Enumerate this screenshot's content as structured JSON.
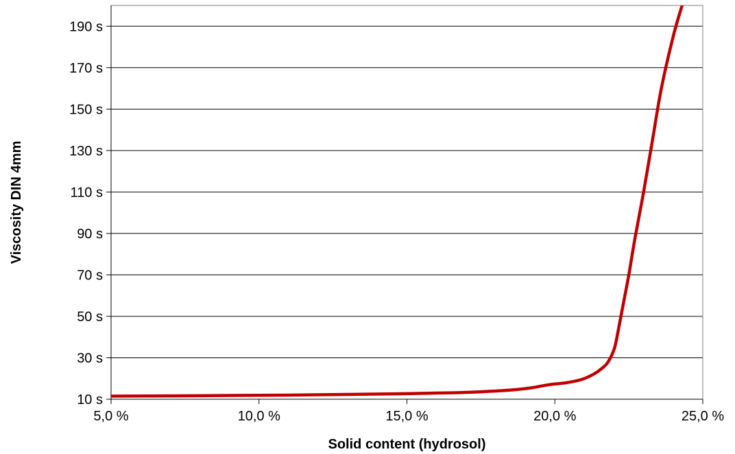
{
  "chart_data": {
    "type": "line",
    "title": "",
    "xlabel": "Solid content (hydrosol)",
    "ylabel": "Viscosity DIN 4mm",
    "xlim": [
      5.0,
      25.0
    ],
    "ylim": [
      10,
      200
    ],
    "x_ticks": [
      5.0,
      10.0,
      15.0,
      20.0,
      25.0
    ],
    "x_tick_labels": [
      "5,0 %",
      "10,0 %",
      "15,0 %",
      "20,0 %",
      "25,0 %"
    ],
    "y_ticks": [
      10,
      30,
      50,
      70,
      90,
      110,
      130,
      150,
      170,
      190
    ],
    "y_tick_labels": [
      "10 s",
      "30 s",
      "50 s",
      "70 s",
      "90 s",
      "110 s",
      "130 s",
      "150 s",
      "170 s",
      "190 s"
    ],
    "grid": {
      "horizontal": true,
      "vertical": false
    },
    "legend": "none",
    "series": [
      {
        "color": "#c00000",
        "x": [
          5.0,
          7.0,
          9.0,
          11.0,
          13.0,
          15.0,
          16.5,
          17.5,
          18.5,
          19.2,
          19.8,
          20.4,
          20.9,
          21.3,
          21.6,
          21.8,
          22.0,
          22.1,
          22.3,
          22.5,
          22.7,
          23.0,
          23.3,
          23.6,
          24.0,
          24.3
        ],
        "y": [
          11.5,
          11.6,
          11.8,
          12.0,
          12.3,
          12.7,
          13.1,
          13.6,
          14.4,
          15.5,
          17.0,
          18.0,
          19.5,
          22.0,
          25.0,
          28.0,
          34.0,
          40.0,
          55.0,
          70.0,
          87.0,
          110.0,
          135.0,
          160.0,
          185.0,
          200.0
        ]
      }
    ]
  }
}
